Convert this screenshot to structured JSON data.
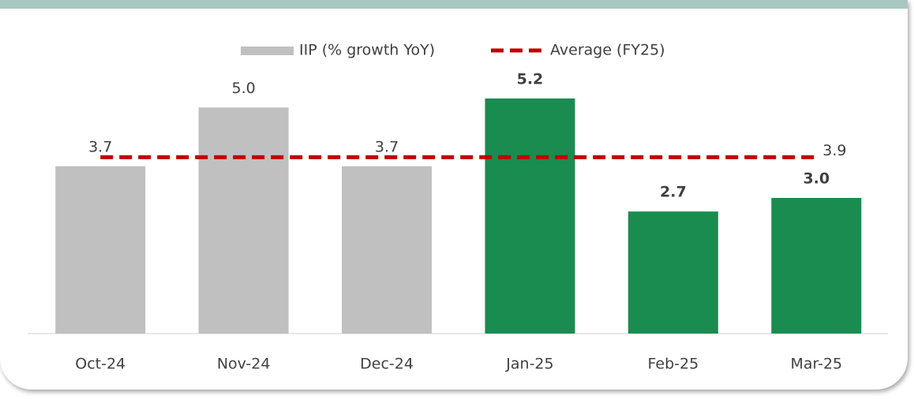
{
  "chart_data": {
    "type": "bar",
    "categories": [
      "Oct-24",
      "Nov-24",
      "Dec-24",
      "Jan-25",
      "Feb-25",
      "Mar-25"
    ],
    "series": [
      {
        "name": "IIP (% growth YoY)",
        "values": [
          3.7,
          5,
          3.7,
          5.2,
          2.7,
          3
        ],
        "value_labels": [
          "3.7",
          "5.0",
          "3.7",
          "5.2",
          "2.7",
          "3.0"
        ],
        "colors": [
          "#c0c0c0",
          "#c0c0c0",
          "#c0c0c0",
          "#1a8c50",
          "#1a8c50",
          "#1a8c50"
        ],
        "bold_labels": [
          false,
          false,
          false,
          true,
          true,
          true
        ]
      }
    ],
    "average": {
      "name": "Average (FY25)",
      "value": 3.9,
      "color": "#c00000"
    },
    "ylim": [
      0,
      6
    ],
    "legend": "top"
  }
}
